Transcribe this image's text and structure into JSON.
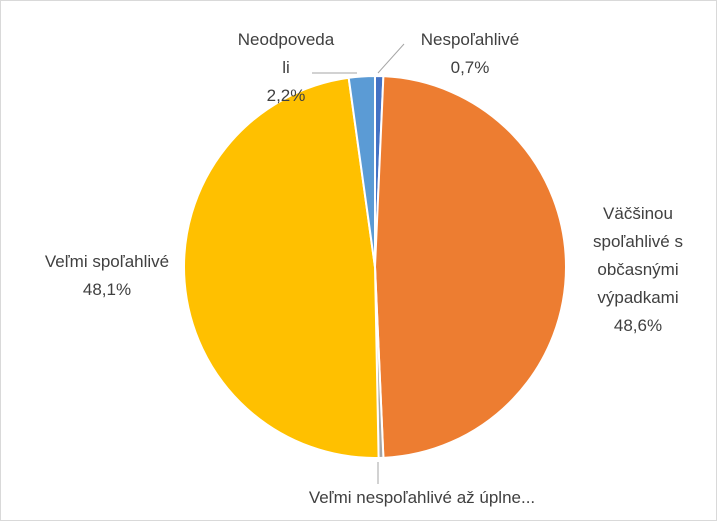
{
  "chart_data": {
    "type": "pie",
    "categories": [
      "Nespoľahlivé",
      "Väčšinou spoľahlivé s občasnými výpadkami",
      "Veľmi nespoľahlivé až úplne...",
      "Veľmi spoľahlivé",
      "Neodpovedali"
    ],
    "values": [
      0.7,
      48.6,
      0.4,
      48.1,
      2.2
    ],
    "value_labels": [
      "0,7%",
      "48,6%",
      null,
      "48,1%",
      "2,2%"
    ],
    "colors": [
      "#4472c4",
      "#ed7d31",
      "#a5a5a5",
      "#ffc000",
      "#5b9bd5"
    ]
  }
}
